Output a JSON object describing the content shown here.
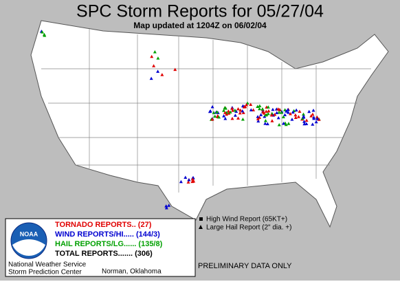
{
  "header": {
    "title": "SPC Storm Reports for 05/27/04",
    "subtitle": "Map updated at 1204Z on 06/02/04"
  },
  "legend": {
    "items": [
      {
        "label": "TORNADO REPORTS.. (27)",
        "color": "#e00000"
      },
      {
        "label": "WIND REPORTS/HI..... (144/3)",
        "color": "#0000d0"
      },
      {
        "label": "HAIL REPORTS/LG...... (135/8)",
        "color": "#00a000"
      },
      {
        "label": "TOTAL REPORTS....... (306)",
        "color": "#000000"
      }
    ],
    "symbols": [
      "High Wind Report (65KT+)",
      "Large Hail Report (2\" dia. +)"
    ]
  },
  "footer": {
    "logo": "NOAA",
    "agency": "National Weather Service",
    "center": "Storm Prediction Center",
    "location": "Norman, Oklahoma",
    "note": "PRELIMINARY DATA ONLY"
  }
}
